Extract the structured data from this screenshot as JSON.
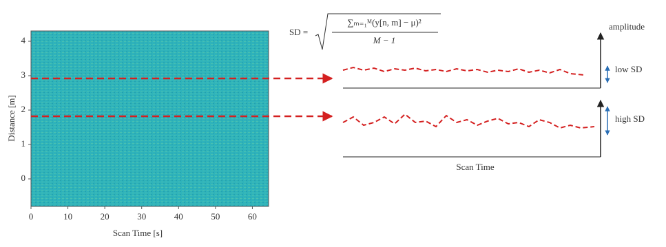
{
  "plot": {
    "xlabel": "Scan Time [s]",
    "ylabel": "Distance [m]",
    "xlim": [
      0,
      64.4
    ],
    "ylim": [
      -0.8,
      4.3
    ],
    "xticks": [
      0,
      10,
      20,
      30,
      40,
      50,
      60
    ],
    "yticks": [
      0,
      1,
      2,
      3,
      4
    ]
  },
  "formula": {
    "lhs": "SD =",
    "numerator": "∑ₘ₌₁ᴹ(y[n, m] − μ)²",
    "denominator": "M − 1"
  },
  "diagram": {
    "y_axis": "amplitude",
    "top_label": "low SD",
    "bottom_label": "high SD",
    "x_axis": "Scan Time"
  }
}
